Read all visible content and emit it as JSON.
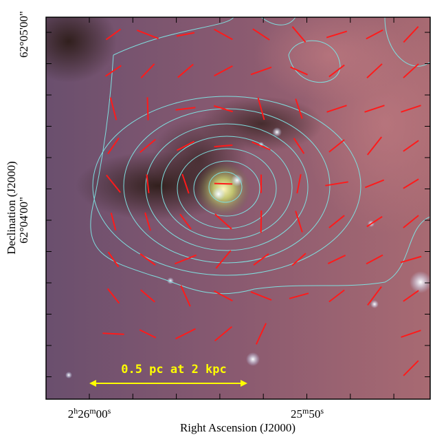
{
  "figure": {
    "x_axis_title": "Right Ascension (J2000)",
    "y_axis_title": "Declination (J2000)",
    "x_tick_labels": [
      [
        "2",
        "h",
        "26",
        "m",
        "00",
        "s"
      ],
      [
        "25",
        "m",
        "50",
        "s"
      ]
    ],
    "y_tick_labels": [
      "62°05'00\"",
      "62°04'00\""
    ],
    "scale_bar_label": "0.5 pc at 2 kpc"
  }
}
